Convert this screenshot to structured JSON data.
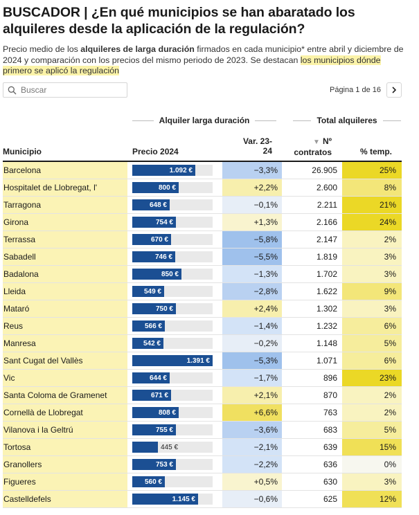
{
  "title": "BUSCADOR | ¿En qué municipios se han abaratado los alquileres desde la aplicación de la regulación?",
  "subtitle": {
    "part1": "Precio medio de los ",
    "bold": "alquileres de larga duración",
    "part2": " firmados en cada municipio* entre abril y diciembre de 2024 y comparación con los precios del mismo periodo de 2023. Se destacan ",
    "highlight": "los municipios dónde primero se aplicó la regulación"
  },
  "search": {
    "placeholder": "Buscar"
  },
  "pager": {
    "text": "Página 1 de 16"
  },
  "groups": {
    "long_term": "Alquiler larga duración",
    "total": "Total alquileres"
  },
  "columns": {
    "municipio": "Municipio",
    "precio": "Precio 2024",
    "var_line1": "Var. 23-",
    "var_line2": "24",
    "contratos_line1": "Nº",
    "contratos_line2": "contratos",
    "temp": "% temp."
  },
  "price_max": 1391,
  "rows": [
    {
      "municipio": "Barcelona",
      "price": 1092,
      "price_label": "1.092 €",
      "var": "−3,3%",
      "var_num": -3.3,
      "contracts": "26.905",
      "temp": "25%",
      "temp_num": 25
    },
    {
      "municipio": "Hospitalet de Llobregat, l'",
      "price": 800,
      "price_label": "800 €",
      "var": "+2,2%",
      "var_num": 2.2,
      "contracts": "2.600",
      "temp": "8%",
      "temp_num": 8
    },
    {
      "municipio": "Tarragona",
      "price": 648,
      "price_label": "648 €",
      "var": "−0,1%",
      "var_num": -0.1,
      "contracts": "2.211",
      "temp": "21%",
      "temp_num": 21
    },
    {
      "municipio": "Girona",
      "price": 754,
      "price_label": "754 €",
      "var": "+1,3%",
      "var_num": 1.3,
      "contracts": "2.166",
      "temp": "24%",
      "temp_num": 24
    },
    {
      "municipio": "Terrassa",
      "price": 670,
      "price_label": "670 €",
      "var": "−5,8%",
      "var_num": -5.8,
      "contracts": "2.147",
      "temp": "2%",
      "temp_num": 2
    },
    {
      "municipio": "Sabadell",
      "price": 746,
      "price_label": "746 €",
      "var": "−5,5%",
      "var_num": -5.5,
      "contracts": "1.819",
      "temp": "3%",
      "temp_num": 3
    },
    {
      "municipio": "Badalona",
      "price": 850,
      "price_label": "850 €",
      "var": "−1,3%",
      "var_num": -1.3,
      "contracts": "1.702",
      "temp": "3%",
      "temp_num": 3
    },
    {
      "municipio": "Lleida",
      "price": 549,
      "price_label": "549 €",
      "var": "−2,8%",
      "var_num": -2.8,
      "contracts": "1.622",
      "temp": "9%",
      "temp_num": 9
    },
    {
      "municipio": "Mataró",
      "price": 750,
      "price_label": "750 €",
      "var": "+2,4%",
      "var_num": 2.4,
      "contracts": "1.302",
      "temp": "3%",
      "temp_num": 3
    },
    {
      "municipio": "Reus",
      "price": 566,
      "price_label": "566 €",
      "var": "−1,4%",
      "var_num": -1.4,
      "contracts": "1.232",
      "temp": "6%",
      "temp_num": 6
    },
    {
      "municipio": "Manresa",
      "price": 542,
      "price_label": "542 €",
      "var": "−0,2%",
      "var_num": -0.2,
      "contracts": "1.148",
      "temp": "5%",
      "temp_num": 5
    },
    {
      "municipio": "Sant Cugat del Vallès",
      "price": 1391,
      "price_label": "1.391 €",
      "var": "−5,3%",
      "var_num": -5.3,
      "contracts": "1.071",
      "temp": "6%",
      "temp_num": 6
    },
    {
      "municipio": "Vic",
      "price": 644,
      "price_label": "644 €",
      "var": "−1,7%",
      "var_num": -1.7,
      "contracts": "896",
      "temp": "23%",
      "temp_num": 23
    },
    {
      "municipio": "Santa Coloma de Gramenet",
      "price": 671,
      "price_label": "671 €",
      "var": "+2,1%",
      "var_num": 2.1,
      "contracts": "870",
      "temp": "2%",
      "temp_num": 2
    },
    {
      "municipio": "Cornellà de Llobregat",
      "price": 808,
      "price_label": "808 €",
      "var": "+6,6%",
      "var_num": 6.6,
      "contracts": "763",
      "temp": "2%",
      "temp_num": 2
    },
    {
      "municipio": "Vilanova i la Geltrú",
      "price": 755,
      "price_label": "755 €",
      "var": "−3,6%",
      "var_num": -3.6,
      "contracts": "683",
      "temp": "5%",
      "temp_num": 5
    },
    {
      "municipio": "Tortosa",
      "price": 445,
      "price_label": "445 €",
      "var": "−2,1%",
      "var_num": -2.1,
      "contracts": "639",
      "temp": "15%",
      "temp_num": 15
    },
    {
      "municipio": "Granollers",
      "price": 753,
      "price_label": "753 €",
      "var": "−2,2%",
      "var_num": -2.2,
      "contracts": "636",
      "temp": "0%",
      "temp_num": 0
    },
    {
      "municipio": "Figueres",
      "price": 560,
      "price_label": "560 €",
      "var": "+0,5%",
      "var_num": 0.5,
      "contracts": "630",
      "temp": "3%",
      "temp_num": 3
    },
    {
      "municipio": "Castelldefels",
      "price": 1145,
      "price_label": "1.145 €",
      "var": "−0,6%",
      "var_num": -0.6,
      "contracts": "625",
      "temp": "12%",
      "temp_num": 12
    }
  ]
}
